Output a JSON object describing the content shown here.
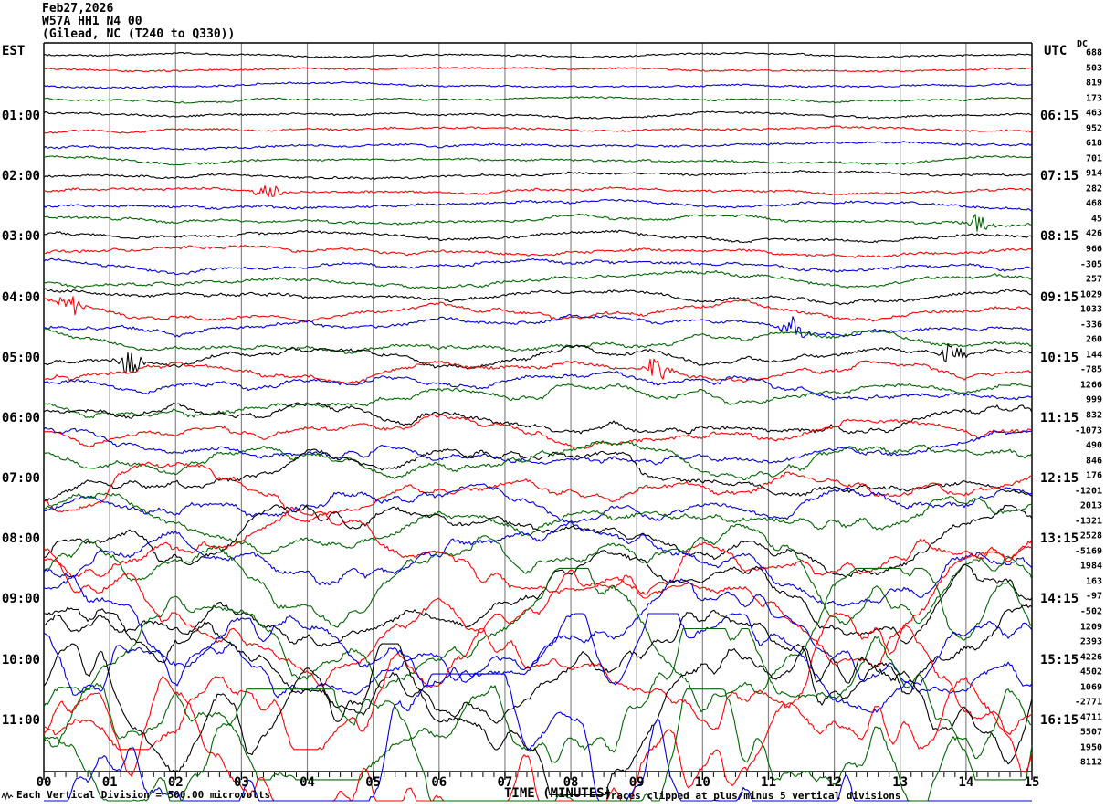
{
  "header": {
    "date": "Feb27,2026",
    "station": "W57A HH1 N4 00",
    "location": "(Gilead, NC (T240 to Q330))"
  },
  "axis_headers": {
    "left": "EST",
    "right": "UTC",
    "dc": "DC"
  },
  "footer": {
    "scale_note": "Each Vertical Division =  500.00 microvolts",
    "x_axis_title": "TIME (MINUTES)",
    "clip_note": "Traces clipped at plus/minus 5 vertical divisions"
  },
  "palette": {
    "black": "#000000",
    "red": "#ff0000",
    "blue": "#0000dd",
    "green": "#006600",
    "grid": "#888888",
    "frame": "#000000"
  },
  "chart_data": {
    "type": "line",
    "subtype": "helicorder_seismogram",
    "title": "W57A HH1 N4 00 (Gilead, NC (T240 to Q330)) Feb27,2026",
    "xlabel": "TIME (MINUTES)",
    "x_range_minutes": [
      0,
      15
    ],
    "x_tick_labels": [
      "00",
      "01",
      "02",
      "03",
      "04",
      "05",
      "06",
      "07",
      "08",
      "09",
      "10",
      "11",
      "12",
      "13",
      "14",
      "15"
    ],
    "minutes_per_row": 15,
    "rows": 48,
    "vertical_division_microvolts": 500.0,
    "clip_limit_divisions": 5,
    "trace_color_cycle": [
      "black",
      "red",
      "blue",
      "green"
    ],
    "amplitude_note": "Background noise grows from under 0.2 vertical divisions on the earliest (top) traces to clipped plus/minus 5 divisions on the latest (bottom) traces",
    "traces": [
      {
        "row": 1,
        "color": "black",
        "dc": 688
      },
      {
        "row": 2,
        "color": "red",
        "dc": 503
      },
      {
        "row": 3,
        "color": "blue",
        "dc": 819
      },
      {
        "row": 4,
        "color": "green",
        "dc": 173
      },
      {
        "row": 5,
        "color": "black",
        "dc": 463,
        "est": "01:00",
        "utc": "06:15"
      },
      {
        "row": 6,
        "color": "red",
        "dc": 952
      },
      {
        "row": 7,
        "color": "blue",
        "dc": 618
      },
      {
        "row": 8,
        "color": "green",
        "dc": 701
      },
      {
        "row": 9,
        "color": "black",
        "dc": 914,
        "est": "02:00",
        "utc": "07:15"
      },
      {
        "row": 10,
        "color": "red",
        "dc": 282
      },
      {
        "row": 11,
        "color": "blue",
        "dc": 468
      },
      {
        "row": 12,
        "color": "green",
        "dc": 45
      },
      {
        "row": 13,
        "color": "black",
        "dc": 426,
        "est": "03:00",
        "utc": "08:15"
      },
      {
        "row": 14,
        "color": "red",
        "dc": 966
      },
      {
        "row": 15,
        "color": "blue",
        "dc": -305
      },
      {
        "row": 16,
        "color": "green",
        "dc": 257
      },
      {
        "row": 17,
        "color": "black",
        "dc": 1029,
        "est": "04:00",
        "utc": "09:15"
      },
      {
        "row": 18,
        "color": "red",
        "dc": 1033
      },
      {
        "row": 19,
        "color": "blue",
        "dc": -336
      },
      {
        "row": 20,
        "color": "green",
        "dc": 260
      },
      {
        "row": 21,
        "color": "black",
        "dc": 144,
        "est": "05:00",
        "utc": "10:15"
      },
      {
        "row": 22,
        "color": "red",
        "dc": -785
      },
      {
        "row": 23,
        "color": "blue",
        "dc": 1266
      },
      {
        "row": 24,
        "color": "green",
        "dc": 999
      },
      {
        "row": 25,
        "color": "black",
        "dc": 832,
        "est": "06:00",
        "utc": "11:15"
      },
      {
        "row": 26,
        "color": "red",
        "dc": -1073
      },
      {
        "row": 27,
        "color": "blue",
        "dc": 490
      },
      {
        "row": 28,
        "color": "green",
        "dc": 846
      },
      {
        "row": 29,
        "color": "black",
        "dc": 176,
        "est": "07:00",
        "utc": "12:15"
      },
      {
        "row": 30,
        "color": "red",
        "dc": -1201
      },
      {
        "row": 31,
        "color": "blue",
        "dc": 2013
      },
      {
        "row": 32,
        "color": "green",
        "dc": -1321
      },
      {
        "row": 33,
        "color": "black",
        "dc": 2528,
        "est": "08:00",
        "utc": "13:15"
      },
      {
        "row": 34,
        "color": "red",
        "dc": -5169
      },
      {
        "row": 35,
        "color": "blue",
        "dc": 1984
      },
      {
        "row": 36,
        "color": "green",
        "dc": 163
      },
      {
        "row": 37,
        "color": "black",
        "dc": -97,
        "est": "09:00",
        "utc": "14:15"
      },
      {
        "row": 38,
        "color": "red",
        "dc": -502
      },
      {
        "row": 39,
        "color": "blue",
        "dc": 1209
      },
      {
        "row": 40,
        "color": "green",
        "dc": 2393
      },
      {
        "row": 41,
        "color": "black",
        "dc": 4226,
        "est": "10:00",
        "utc": "15:15"
      },
      {
        "row": 42,
        "color": "red",
        "dc": 4502
      },
      {
        "row": 43,
        "color": "blue",
        "dc": 1069
      },
      {
        "row": 44,
        "color": "green",
        "dc": -2771
      },
      {
        "row": 45,
        "color": "black",
        "dc": 4711,
        "est": "11:00",
        "utc": "16:15"
      },
      {
        "row": 46,
        "color": "red",
        "dc": 5507
      },
      {
        "row": 47,
        "color": "blue",
        "dc": 1950
      },
      {
        "row": 48,
        "color": "green",
        "dc": 8112
      }
    ],
    "bursts": [
      {
        "row": 10,
        "minute": 3.4
      },
      {
        "row": 12,
        "minute": 14.2
      },
      {
        "row": 18,
        "minute": 0.4
      },
      {
        "row": 19,
        "minute": 11.4
      },
      {
        "row": 21,
        "minute": 1.3
      },
      {
        "row": 21,
        "minute": 13.8
      },
      {
        "row": 22,
        "minute": 9.3
      }
    ]
  }
}
